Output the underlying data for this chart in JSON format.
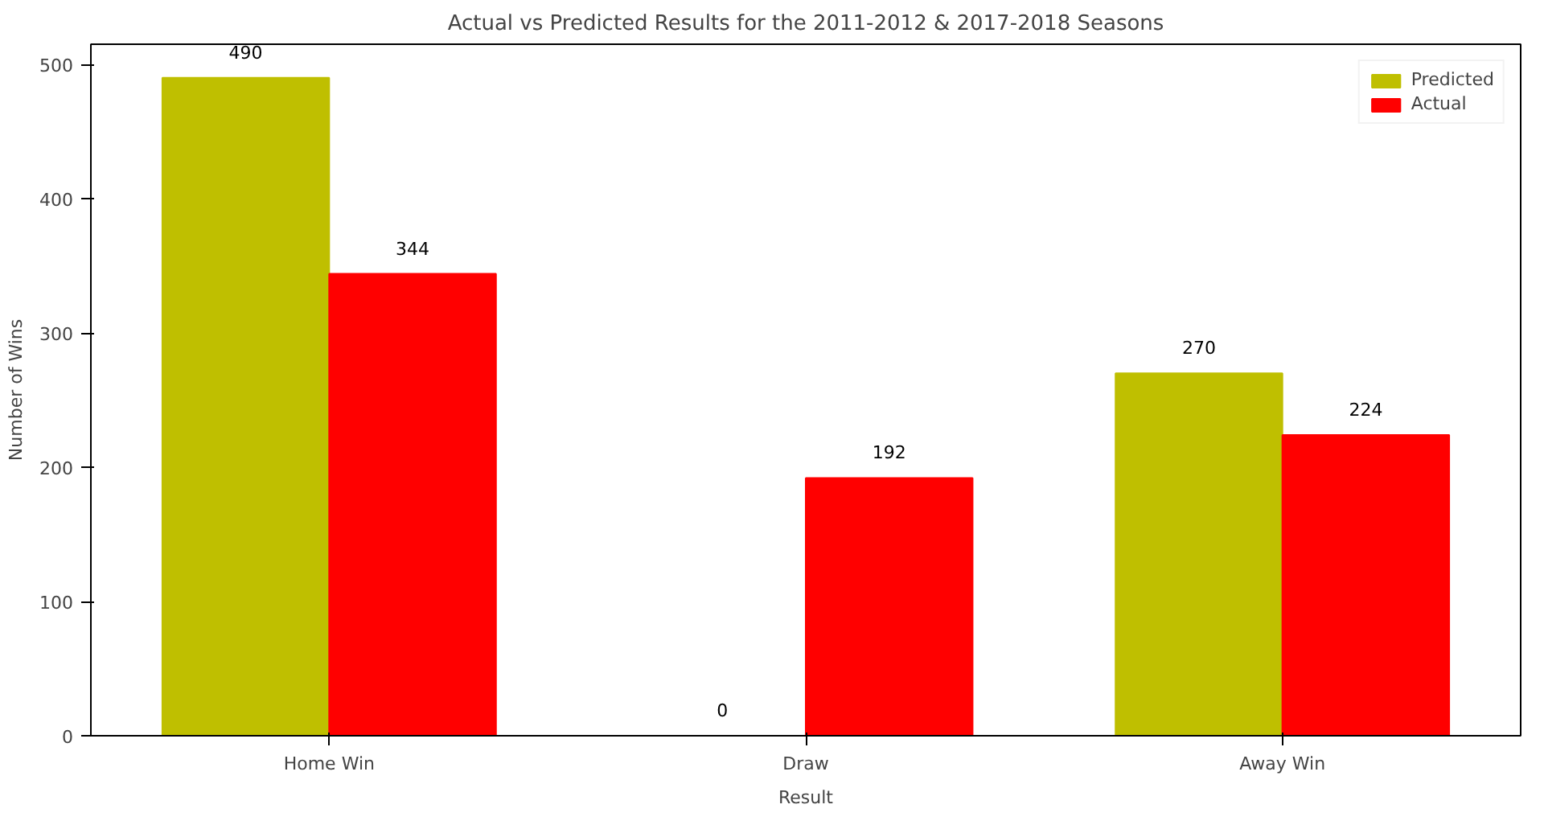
{
  "chart_data": {
    "type": "bar",
    "title": "Actual vs Predicted Results for the 2011-2012 & 2017-2018 Seasons",
    "xlabel": "Result",
    "ylabel": "Number of Wins",
    "categories": [
      "Home Win",
      "Draw",
      "Away Win"
    ],
    "series": [
      {
        "name": "Predicted",
        "color": "#bfbf00",
        "values": [
          490,
          0,
          270
        ]
      },
      {
        "name": "Actual",
        "color": "#ff0000",
        "values": [
          344,
          192,
          224
        ]
      }
    ],
    "ylim": [
      0,
      515
    ],
    "yticks": [
      0,
      100,
      200,
      300,
      400,
      500
    ],
    "grid": false,
    "legend": "top right",
    "data_labels": true
  }
}
